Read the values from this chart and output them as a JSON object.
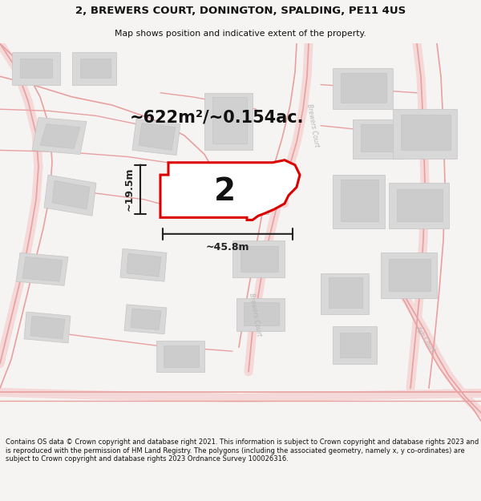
{
  "title_line1": "2, BREWERS COURT, DONINGTON, SPALDING, PE11 4US",
  "title_line2": "Map shows position and indicative extent of the property.",
  "footer_text": "Contains OS data © Crown copyright and database right 2021. This information is subject to Crown copyright and database rights 2023 and is reproduced with the permission of HM Land Registry. The polygons (including the associated geometry, namely x, y co-ordinates) are subject to Crown copyright and database rights 2023 Ordnance Survey 100026316.",
  "area_label": "~622m²/~0.154ac.",
  "property_number": "2",
  "dim_width": "~45.8m",
  "dim_height": "~19.5m",
  "bg_color": "#f5f4f2",
  "map_bg": "#ffffff",
  "road_line_color": "#e8a0a0",
  "road_fill_color": "#f5d8d8",
  "building_fill": "#d8d8d8",
  "building_edge": "#c5c5c5",
  "property_fill": "#ffffff",
  "property_outline": "#dd0000",
  "property_lw": 2.2,
  "text_color": "#111111",
  "dim_color": "#222222",
  "road_label_color": "#b8b8b8"
}
